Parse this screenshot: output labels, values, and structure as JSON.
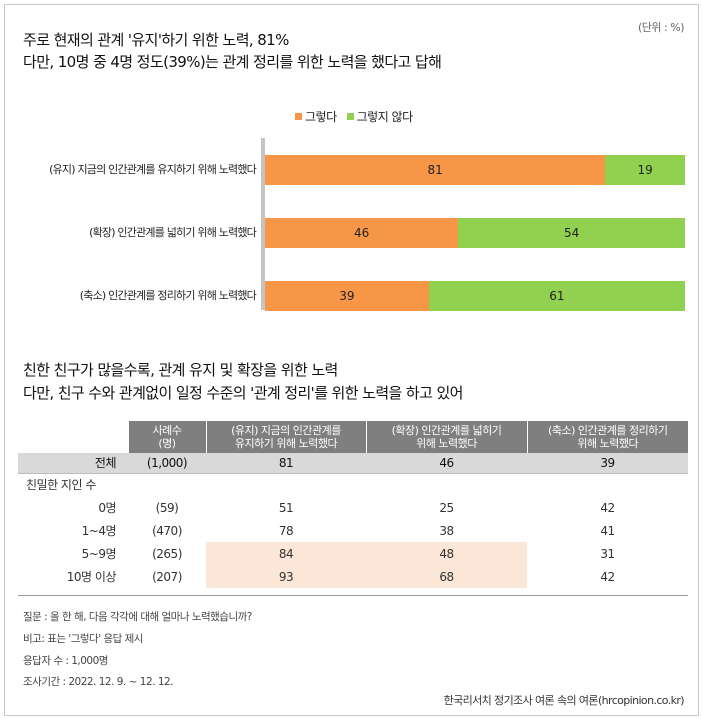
{
  "unit_label": "(단위 : %)",
  "titles": {
    "line1": "주로 현재의 관계 '유지'하기 위한 노력, 81%",
    "line2": "다만, 10명 중 4명 정도(39%)는 관계 정리를 위한 노력을 했다고 답해",
    "line3": "친한 친구가 많을수록, 관계 유지 및 확장을 위한 노력",
    "line4": "다만, 친구 수와 관계없이 일정 수준의 '관계 정리'를 위한 노력을 하고 있어"
  },
  "colors": {
    "yes": "#f79646",
    "no": "#92d050",
    "highlight": "#fce6d8",
    "header": "#7f7f7f"
  },
  "chart_data": {
    "type": "bar",
    "orientation": "horizontal",
    "stacked": true,
    "categories": [
      "(유지) 지금의 인간관계를 유지하기 위해 노력했다",
      "(확장) 인간관계를 넓히기 위해 노력했다",
      "(축소) 인간관계를 정리하기 위해 노력했다"
    ],
    "series": [
      {
        "name": "그렇다",
        "values": [
          81,
          46,
          39
        ],
        "color": "#f79646"
      },
      {
        "name": "그렇지 않다",
        "values": [
          19,
          54,
          61
        ],
        "color": "#92d050"
      }
    ],
    "xlim": [
      0,
      100
    ],
    "legend": "top-center",
    "grid": false
  },
  "table": {
    "headers": [
      "사례수\n(명)",
      "(유지) 지금의 인간관계를\n유지하기 위해 노력했다",
      "(확장) 인간관계를 넓히기\n위해 노력했다",
      "(축소) 인간관계를 정리하기\n위해 노력했다"
    ],
    "total": {
      "label": "전체",
      "n": "(1,000)",
      "values": [
        "81",
        "46",
        "39"
      ]
    },
    "subheader": "친밀한 지인 수",
    "rows": [
      {
        "label": "0명",
        "n": "(59)",
        "values": [
          "51",
          "25",
          "42"
        ],
        "highlight": false
      },
      {
        "label": "1~4명",
        "n": "(470)",
        "values": [
          "78",
          "38",
          "41"
        ],
        "highlight": false
      },
      {
        "label": "5~9명",
        "n": "(265)",
        "values": [
          "84",
          "48",
          "31"
        ],
        "highlight": true
      },
      {
        "label": "10명 이상",
        "n": "(207)",
        "values": [
          "93",
          "68",
          "42"
        ],
        "highlight": true
      }
    ]
  },
  "notes": [
    "질문 : 올 한 해, 다음 각각에 대해 얼마나 노력했습니까?",
    "비고: 표는 '그렇다' 응답 제시",
    "응답자 수 : 1,000명",
    "조사기간 : 2022. 12. 9. ~ 12. 12."
  ],
  "source": "한국리서치 정기조사 여론 속의 여론(hrcopinion.co.kr)"
}
